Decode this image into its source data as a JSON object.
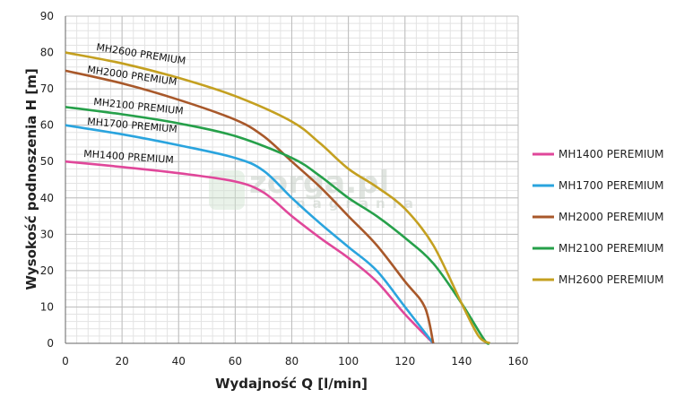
{
  "chart_data": {
    "type": "line",
    "xlabel": "Wydajność Q [l/min]",
    "ylabel": "Wysokość podnoszenia H [m]",
    "xlim": [
      0,
      160
    ],
    "ylim": [
      0,
      90
    ],
    "x_ticks": [
      0,
      20,
      40,
      60,
      80,
      100,
      120,
      140,
      160
    ],
    "y_ticks": [
      0,
      10,
      20,
      30,
      40,
      50,
      60,
      70,
      80,
      90
    ],
    "grid": true,
    "legend_position": "right",
    "series": [
      {
        "name": "MH1400 PEREMIUM",
        "curve_label": "MH1400 PREMIUM",
        "color": "#e0479a",
        "points": [
          [
            0,
            50
          ],
          [
            20,
            48.5
          ],
          [
            40,
            46.8
          ],
          [
            60,
            44.5
          ],
          [
            70,
            41.5
          ],
          [
            80,
            35
          ],
          [
            90,
            29
          ],
          [
            100,
            23.5
          ],
          [
            110,
            17
          ],
          [
            120,
            8
          ],
          [
            130,
            0
          ]
        ]
      },
      {
        "name": "MH1700 PEREMIUM",
        "curve_label": "MH1700 PREMIUM",
        "color": "#2aa4de",
        "points": [
          [
            0,
            60
          ],
          [
            20,
            57.5
          ],
          [
            40,
            54.5
          ],
          [
            60,
            51
          ],
          [
            70,
            47.5
          ],
          [
            80,
            40
          ],
          [
            90,
            33
          ],
          [
            100,
            26.5
          ],
          [
            110,
            20
          ],
          [
            120,
            10
          ],
          [
            130,
            0
          ]
        ]
      },
      {
        "name": "MH2000 PEREMIUM",
        "curve_label": "MH2000 PREMIUM",
        "color": "#a8582a",
        "points": [
          [
            0,
            75
          ],
          [
            20,
            71.5
          ],
          [
            40,
            67
          ],
          [
            60,
            61.5
          ],
          [
            70,
            57
          ],
          [
            80,
            50
          ],
          [
            90,
            43
          ],
          [
            100,
            35
          ],
          [
            110,
            27
          ],
          [
            120,
            17
          ],
          [
            127,
            10
          ],
          [
            130,
            0
          ]
        ]
      },
      {
        "name": "MH2100 PEREMIUM",
        "curve_label": "MH2100 PREMIUM",
        "color": "#26a04a",
        "points": [
          [
            0,
            65
          ],
          [
            20,
            63
          ],
          [
            40,
            60.5
          ],
          [
            60,
            57
          ],
          [
            80,
            51
          ],
          [
            90,
            46
          ],
          [
            100,
            40
          ],
          [
            110,
            35
          ],
          [
            120,
            29
          ],
          [
            130,
            22
          ],
          [
            140,
            11
          ],
          [
            148,
            1
          ],
          [
            150,
            0
          ]
        ]
      },
      {
        "name": "MH2600 PEREMIUM",
        "curve_label": "MH2600 PREMIUM",
        "color": "#c4a020",
        "points": [
          [
            0,
            80
          ],
          [
            20,
            77
          ],
          [
            40,
            73
          ],
          [
            60,
            68
          ],
          [
            80,
            61
          ],
          [
            90,
            55
          ],
          [
            100,
            48
          ],
          [
            110,
            43
          ],
          [
            120,
            37
          ],
          [
            130,
            27
          ],
          [
            140,
            11
          ],
          [
            146,
            2
          ],
          [
            150,
            0
          ]
        ]
      }
    ]
  },
  "watermark": {
    "brand": "zorga.pl",
    "sub": "nagrania"
  }
}
